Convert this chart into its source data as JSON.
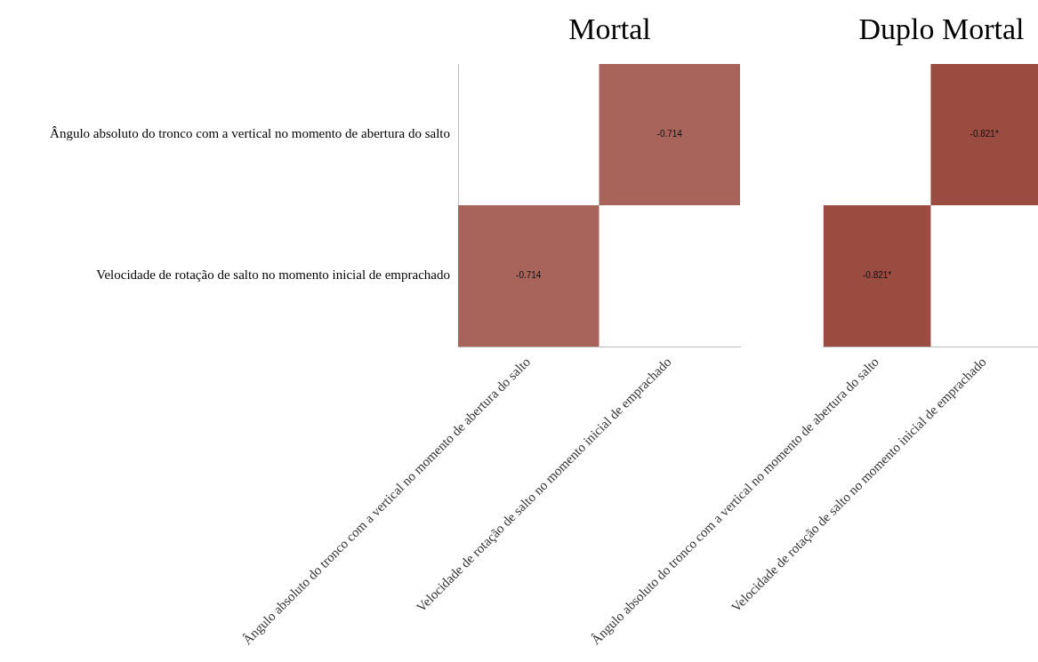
{
  "chart_data": [
    {
      "type": "heatmap",
      "title": "Mortal",
      "categories": [
        "Ângulo absoluto do tronco com a vertical no momento de abertura do salto",
        "Velocidade de rotação de salto no momento inicial de emprachado"
      ],
      "y_categories": [
        "Ângulo absoluto do tronco com a vertical no momento de abertura do salto",
        "Velocidade de rotação de salto no momento inicial de emprachado"
      ],
      "cells": [
        [
          null,
          -0.714
        ],
        [
          -0.714,
          null
        ]
      ],
      "cell_labels": [
        [
          null,
          "-0.714"
        ],
        [
          "-0.714",
          null
        ]
      ]
    },
    {
      "type": "heatmap",
      "title": "Duplo Mortal",
      "categories": [
        "Ângulo absoluto do tronco com a vertical no momento de abertura do salto",
        "Velocidade de rotação de salto no momento inicial de emprachado"
      ],
      "y_categories": [
        null,
        null
      ],
      "cells": [
        [
          null,
          -0.821
        ],
        [
          -0.821,
          null
        ]
      ],
      "cell_labels": [
        [
          null,
          "-0.821*"
        ],
        [
          "-0.821*",
          null
        ]
      ],
      "tick_labels": "x"
    }
  ]
}
